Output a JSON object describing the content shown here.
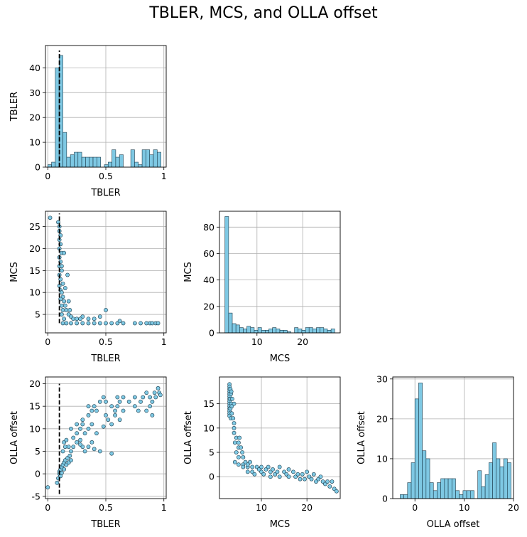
{
  "figure": {
    "title": "TBLER, MCS, and OLLA offset"
  },
  "colors": {
    "fill": "#7ec8e3",
    "edge": "#1a3a4a",
    "grid": "#b0b0b0",
    "refline": "#000000"
  },
  "chart_data": [
    {
      "id": "tbler_hist",
      "type": "bar",
      "xlabel": "TBLER",
      "ylabel": "TBLER",
      "xlim": [
        -0.02,
        1.02
      ],
      "ylim": [
        0,
        49
      ],
      "xticks": [
        0.0,
        0.5,
        1.0
      ],
      "yticks": [
        0,
        10,
        20,
        30,
        40
      ],
      "bin_width": 0.0325,
      "refline_x": 0.1,
      "bin_starts": [
        0.0,
        0.0325,
        0.065,
        0.0975,
        0.13,
        0.1625,
        0.195,
        0.2275,
        0.26,
        0.2925,
        0.325,
        0.3575,
        0.39,
        0.4225,
        0.455,
        0.4875,
        0.52,
        0.5525,
        0.585,
        0.6175,
        0.65,
        0.6825,
        0.715,
        0.7475,
        0.78,
        0.8125,
        0.845,
        0.8775,
        0.91,
        0.9425
      ],
      "values": [
        1,
        2,
        40,
        45,
        14,
        4,
        5,
        6,
        6,
        4,
        4,
        4,
        4,
        4,
        0,
        1,
        2,
        7,
        4,
        5,
        0,
        0,
        7,
        2,
        1,
        7,
        7,
        5,
        7,
        6
      ]
    },
    {
      "id": "mcs_vs_tbler",
      "type": "scatter",
      "xlabel": "TBLER",
      "ylabel": "MCS",
      "xlim": [
        -0.02,
        1.02
      ],
      "ylim": [
        0.8,
        28.5
      ],
      "xticks": [
        0.0,
        0.5,
        1.0
      ],
      "yticks": [
        5,
        10,
        15,
        20,
        25
      ],
      "refline_x": 0.1,
      "refline_y": [
        3,
        28
      ],
      "points": [
        [
          0.02,
          27
        ],
        [
          0.09,
          26
        ],
        [
          0.1,
          25
        ],
        [
          0.1,
          24
        ],
        [
          0.11,
          23
        ],
        [
          0.1,
          22
        ],
        [
          0.11,
          21
        ],
        [
          0.1,
          20
        ],
        [
          0.12,
          19
        ],
        [
          0.1,
          18
        ],
        [
          0.11,
          17
        ],
        [
          0.1,
          16
        ],
        [
          0.12,
          15
        ],
        [
          0.1,
          14
        ],
        [
          0.11,
          13
        ],
        [
          0.13,
          12
        ],
        [
          0.1,
          11.5
        ],
        [
          0.11,
          10.5
        ],
        [
          0.12,
          10
        ],
        [
          0.13,
          9
        ],
        [
          0.11,
          8.5
        ],
        [
          0.14,
          8
        ],
        [
          0.12,
          7
        ],
        [
          0.15,
          7
        ],
        [
          0.13,
          6
        ],
        [
          0.16,
          6
        ],
        [
          0.12,
          5
        ],
        [
          0.18,
          5
        ],
        [
          0.2,
          4.5
        ],
        [
          0.14,
          4
        ],
        [
          0.22,
          4
        ],
        [
          0.25,
          4
        ],
        [
          0.3,
          4.5
        ],
        [
          0.28,
          4
        ],
        [
          0.35,
          4
        ],
        [
          0.4,
          4
        ],
        [
          0.45,
          4.5
        ],
        [
          0.13,
          3
        ],
        [
          0.16,
          3
        ],
        [
          0.2,
          3
        ],
        [
          0.25,
          3
        ],
        [
          0.3,
          3
        ],
        [
          0.35,
          3
        ],
        [
          0.4,
          3
        ],
        [
          0.45,
          3
        ],
        [
          0.5,
          3
        ],
        [
          0.55,
          3
        ],
        [
          0.6,
          3
        ],
        [
          0.62,
          3.5
        ],
        [
          0.65,
          3
        ],
        [
          0.75,
          3
        ],
        [
          0.8,
          3
        ],
        [
          0.85,
          3
        ],
        [
          0.88,
          3
        ],
        [
          0.9,
          3
        ],
        [
          0.93,
          3
        ],
        [
          0.95,
          3
        ],
        [
          0.17,
          14
        ],
        [
          0.14,
          19
        ],
        [
          0.15,
          11
        ],
        [
          0.19,
          6
        ],
        [
          0.5,
          6
        ],
        [
          0.12,
          16
        ],
        [
          0.18,
          8
        ]
      ]
    },
    {
      "id": "mcs_hist",
      "type": "bar",
      "xlabel": "MCS",
      "ylabel": "MCS",
      "xlim": [
        1.8,
        28.2
      ],
      "ylim": [
        0,
        92
      ],
      "xticks": [
        10,
        20
      ],
      "yticks": [
        0,
        20,
        40,
        60,
        80
      ],
      "bin_width": 0.8,
      "bin_starts": [
        3.0,
        3.8,
        4.6,
        5.4,
        6.2,
        7.0,
        7.8,
        8.6,
        9.4,
        10.2,
        11.0,
        11.8,
        12.6,
        13.4,
        14.2,
        15.0,
        15.8,
        16.6,
        17.4,
        18.2,
        19.0,
        19.8,
        20.6,
        21.4,
        22.2,
        23.0,
        23.8,
        24.6,
        25.4,
        26.2
      ],
      "values": [
        88,
        15,
        7,
        6,
        4,
        3,
        5,
        4,
        2,
        4,
        2,
        2,
        3,
        4,
        3,
        2,
        2,
        1,
        0,
        4,
        3,
        2,
        4,
        4,
        3,
        4,
        4,
        3,
        2,
        3
      ]
    },
    {
      "id": "olla_vs_tbler",
      "type": "scatter",
      "xlabel": "TBLER",
      "ylabel": "OLLA offset",
      "xlim": [
        -0.02,
        1.02
      ],
      "ylim": [
        -5.5,
        21.5
      ],
      "xticks": [
        0.0,
        0.5,
        1.0
      ],
      "yticks": [
        -5,
        0,
        5,
        10,
        15,
        20
      ],
      "refline_x": 0.1,
      "refline_y": [
        -4.5,
        20
      ],
      "points": [
        [
          0.0,
          -3
        ],
        [
          0.08,
          -2
        ],
        [
          0.09,
          -1
        ],
        [
          0.1,
          0
        ],
        [
          0.1,
          0.5
        ],
        [
          0.11,
          1
        ],
        [
          0.11,
          -0.5
        ],
        [
          0.12,
          1.5
        ],
        [
          0.12,
          0.2
        ],
        [
          0.13,
          2
        ],
        [
          0.14,
          2.5
        ],
        [
          0.14,
          1
        ],
        [
          0.15,
          3
        ],
        [
          0.16,
          2
        ],
        [
          0.17,
          3.5
        ],
        [
          0.18,
          2.5
        ],
        [
          0.19,
          4
        ],
        [
          0.2,
          3
        ],
        [
          0.13,
          5
        ],
        [
          0.15,
          6
        ],
        [
          0.14,
          7
        ],
        [
          0.16,
          7.5
        ],
        [
          0.18,
          6
        ],
        [
          0.2,
          5
        ],
        [
          0.22,
          6
        ],
        [
          0.22,
          8
        ],
        [
          0.25,
          7
        ],
        [
          0.28,
          7.5
        ],
        [
          0.3,
          6
        ],
        [
          0.32,
          5
        ],
        [
          0.35,
          6
        ],
        [
          0.38,
          7
        ],
        [
          0.4,
          5.5
        ],
        [
          0.45,
          5
        ],
        [
          0.55,
          4.5
        ],
        [
          0.25,
          9
        ],
        [
          0.28,
          10
        ],
        [
          0.3,
          11
        ],
        [
          0.32,
          9
        ],
        [
          0.35,
          10
        ],
        [
          0.38,
          11
        ],
        [
          0.42,
          9
        ],
        [
          0.48,
          10.5
        ],
        [
          0.2,
          10
        ],
        [
          0.25,
          11
        ],
        [
          0.3,
          12
        ],
        [
          0.35,
          13
        ],
        [
          0.38,
          14
        ],
        [
          0.4,
          15
        ],
        [
          0.42,
          14
        ],
        [
          0.45,
          16
        ],
        [
          0.48,
          17
        ],
        [
          0.5,
          16
        ],
        [
          0.5,
          13
        ],
        [
          0.35,
          15
        ],
        [
          0.55,
          15
        ],
        [
          0.58,
          14
        ],
        [
          0.6,
          15
        ],
        [
          0.62,
          16
        ],
        [
          0.65,
          14
        ],
        [
          0.6,
          17
        ],
        [
          0.62,
          12
        ],
        [
          0.65,
          17
        ],
        [
          0.7,
          16
        ],
        [
          0.75,
          17
        ],
        [
          0.75,
          15
        ],
        [
          0.78,
          14
        ],
        [
          0.8,
          16
        ],
        [
          0.82,
          17
        ],
        [
          0.85,
          18
        ],
        [
          0.85,
          14
        ],
        [
          0.88,
          17
        ],
        [
          0.88,
          15
        ],
        [
          0.9,
          16
        ],
        [
          0.92,
          18
        ],
        [
          0.93,
          17
        ],
        [
          0.95,
          19
        ],
        [
          0.96,
          18
        ],
        [
          0.97,
          17.5
        ],
        [
          0.9,
          13
        ],
        [
          0.55,
          11
        ],
        [
          0.58,
          13
        ],
        [
          0.52,
          12
        ],
        [
          0.28,
          6.5
        ]
      ]
    },
    {
      "id": "olla_vs_mcs",
      "type": "scatter",
      "xlabel": "MCS",
      "ylabel": "OLLA offset",
      "xlim": [
        0.8,
        27.3
      ],
      "ylim": [
        -4.5,
        20.5
      ],
      "xticks": [
        10,
        20
      ],
      "yticks": [
        0,
        5,
        10,
        15
      ],
      "points": [
        [
          3,
          19
        ],
        [
          3,
          18.5
        ],
        [
          3,
          18
        ],
        [
          3,
          17.5
        ],
        [
          3,
          17
        ],
        [
          3,
          16.5
        ],
        [
          3,
          16
        ],
        [
          3,
          15.5
        ],
        [
          3,
          15
        ],
        [
          3,
          14.5
        ],
        [
          3,
          14
        ],
        [
          3,
          13.5
        ],
        [
          3,
          13
        ],
        [
          3,
          12.5
        ],
        [
          3.2,
          18
        ],
        [
          3.3,
          17
        ],
        [
          3.2,
          16
        ],
        [
          3.4,
          15
        ],
        [
          3.2,
          14
        ],
        [
          3.5,
          13
        ],
        [
          3.3,
          12
        ],
        [
          3.6,
          16
        ],
        [
          3.4,
          17.5
        ],
        [
          3.5,
          14.5
        ],
        [
          3.8,
          12
        ],
        [
          4,
          15
        ],
        [
          4,
          11
        ],
        [
          4,
          10
        ],
        [
          4,
          9
        ],
        [
          4.2,
          7
        ],
        [
          4.5,
          8
        ],
        [
          4.5,
          5
        ],
        [
          5,
          7
        ],
        [
          5,
          6
        ],
        [
          5,
          4
        ],
        [
          5.2,
          8
        ],
        [
          5.5,
          6
        ],
        [
          5.8,
          5
        ],
        [
          6,
          4
        ],
        [
          6,
          2.5
        ],
        [
          6.5,
          3
        ],
        [
          7,
          2
        ],
        [
          7,
          1
        ],
        [
          7.5,
          3
        ],
        [
          8,
          2
        ],
        [
          8,
          1
        ],
        [
          8.5,
          0.5
        ],
        [
          9,
          2
        ],
        [
          9.5,
          1.5
        ],
        [
          10,
          1
        ],
        [
          10,
          2
        ],
        [
          10.5,
          0.5
        ],
        [
          11,
          1.5
        ],
        [
          11.5,
          2
        ],
        [
          12,
          1
        ],
        [
          12,
          0
        ],
        [
          12.5,
          1.5
        ],
        [
          13,
          0.5
        ],
        [
          13.5,
          1
        ],
        [
          14,
          2
        ],
        [
          14,
          0
        ],
        [
          15,
          1
        ],
        [
          15.5,
          0.5
        ],
        [
          16,
          0
        ],
        [
          16,
          1.5
        ],
        [
          17,
          1
        ],
        [
          17.5,
          0
        ],
        [
          18,
          0.5
        ],
        [
          18.5,
          -0.5
        ],
        [
          19,
          0.5
        ],
        [
          19.5,
          -0.5
        ],
        [
          20,
          1
        ],
        [
          20.5,
          0
        ],
        [
          21,
          -0.5
        ],
        [
          21.5,
          0.5
        ],
        [
          22,
          -1
        ],
        [
          22.5,
          -0.5
        ],
        [
          23,
          0
        ],
        [
          23.5,
          -1
        ],
        [
          24,
          -1.5
        ],
        [
          24.5,
          -1
        ],
        [
          25,
          -2
        ],
        [
          25.5,
          -1
        ],
        [
          26,
          -2.5
        ],
        [
          26.5,
          -3
        ],
        [
          4.2,
          3
        ],
        [
          5,
          2.5
        ],
        [
          6,
          2
        ],
        [
          7,
          2.5
        ]
      ]
    },
    {
      "id": "olla_hist",
      "type": "bar",
      "xlabel": "OLLA offset",
      "ylabel": "OLLA offset",
      "xlim": [
        -4.5,
        20.0
      ],
      "ylim": [
        0,
        30.5
      ],
      "xticks": [
        0,
        10,
        20
      ],
      "yticks": [
        0,
        10,
        20,
        30
      ],
      "bin_width": 0.75,
      "bin_starts": [
        -3.0,
        -2.25,
        -1.5,
        -0.75,
        0.0,
        0.75,
        1.5,
        2.25,
        3.0,
        3.75,
        4.5,
        5.25,
        6.0,
        6.75,
        7.5,
        8.25,
        9.0,
        9.75,
        10.5,
        11.25,
        12.0,
        12.75,
        13.5,
        14.25,
        15.0,
        15.75,
        16.5,
        17.25,
        18.0,
        18.75
      ],
      "values": [
        1,
        1,
        4,
        9,
        25,
        29,
        12,
        10,
        4,
        2,
        4,
        5,
        5,
        5,
        5,
        2,
        1,
        2,
        2,
        2,
        0,
        7,
        3,
        6,
        9,
        14,
        10,
        8,
        10,
        9
      ]
    }
  ]
}
